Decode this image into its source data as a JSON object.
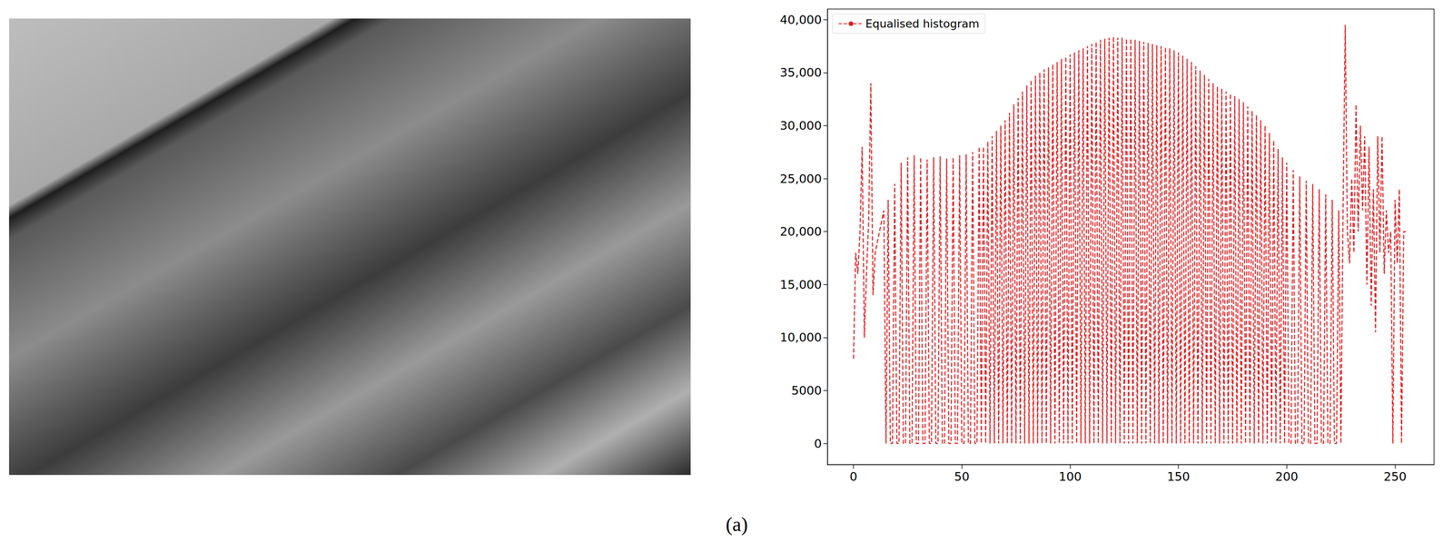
{
  "caption": "(a)",
  "chart_data": {
    "type": "line",
    "legend": "upper left",
    "grid": false,
    "xlim": [
      -12,
      268
    ],
    "xticks": [
      0,
      50,
      100,
      150,
      200,
      250
    ],
    "ylim": [
      -2000,
      41000
    ],
    "yticks": [
      0,
      5000,
      {
        "value": 10000,
        "label": "10,000"
      },
      {
        "value": 15000,
        "label": "15,000"
      },
      {
        "value": 20000,
        "label": "20,000"
      },
      {
        "value": 25000,
        "label": "25,000"
      },
      {
        "value": 30000,
        "label": "30,000"
      },
      {
        "value": 35000,
        "label": "35,000"
      },
      {
        "value": 40000,
        "label": "40,000"
      }
    ],
    "x": [
      0,
      1,
      2,
      3,
      4,
      5,
      6,
      7,
      8,
      9,
      10,
      11,
      12,
      13,
      14,
      15,
      16,
      17,
      18,
      19,
      20,
      21,
      22,
      23,
      24,
      25,
      26,
      27,
      28,
      29,
      30,
      31,
      32,
      33,
      34,
      35,
      36,
      37,
      38,
      39,
      40,
      41,
      42,
      43,
      44,
      45,
      46,
      47,
      48,
      49,
      50,
      51,
      52,
      53,
      54,
      55,
      56,
      57,
      58,
      59,
      60,
      61,
      62,
      63,
      64,
      65,
      66,
      67,
      68,
      69,
      70,
      71,
      72,
      73,
      74,
      75,
      76,
      77,
      78,
      79,
      80,
      81,
      82,
      83,
      84,
      85,
      86,
      87,
      88,
      89,
      90,
      91,
      92,
      93,
      94,
      95,
      96,
      97,
      98,
      99,
      100,
      101,
      102,
      103,
      104,
      105,
      106,
      107,
      108,
      109,
      110,
      111,
      112,
      113,
      114,
      115,
      116,
      117,
      118,
      119,
      120,
      121,
      122,
      123,
      124,
      125,
      126,
      127,
      128,
      129,
      130,
      131,
      132,
      133,
      134,
      135,
      136,
      137,
      138,
      139,
      140,
      141,
      142,
      143,
      144,
      145,
      146,
      147,
      148,
      149,
      150,
      151,
      152,
      153,
      154,
      155,
      156,
      157,
      158,
      159,
      160,
      161,
      162,
      163,
      164,
      165,
      166,
      167,
      168,
      169,
      170,
      171,
      172,
      173,
      174,
      175,
      176,
      177,
      178,
      179,
      180,
      181,
      182,
      183,
      184,
      185,
      186,
      187,
      188,
      189,
      190,
      191,
      192,
      193,
      194,
      195,
      196,
      197,
      198,
      199,
      200,
      201,
      202,
      203,
      204,
      205,
      206,
      207,
      208,
      209,
      210,
      211,
      212,
      213,
      214,
      215,
      216,
      217,
      218,
      219,
      220,
      221,
      222,
      223,
      224,
      225,
      226,
      227,
      228,
      229,
      230,
      231,
      232,
      233,
      234,
      235,
      236,
      237,
      238,
      239,
      240,
      241,
      242,
      243,
      244,
      245,
      246,
      247,
      248,
      249,
      250,
      251,
      252,
      253,
      254,
      255
    ],
    "series": [
      {
        "name": "Equalised histogram",
        "color": "#e31a1c",
        "line_style": "dashed",
        "values": [
          8000,
          18000,
          16000,
          20000,
          28000,
          10000,
          16000,
          21000,
          34000,
          14000,
          18000,
          19000,
          20000,
          21000,
          22000,
          0,
          23000,
          0,
          0,
          24500,
          0,
          0,
          26500,
          0,
          0,
          27000,
          0,
          0,
          27200,
          0,
          0,
          27000,
          0,
          0,
          26800,
          0,
          0,
          27000,
          0,
          0,
          27100,
          0,
          0,
          26900,
          0,
          0,
          27000,
          0,
          0,
          27200,
          0,
          0,
          27300,
          0,
          0,
          27500,
          0,
          0,
          28000,
          0,
          28000,
          0,
          28500,
          0,
          29000,
          0,
          29500,
          0,
          30000,
          0,
          30500,
          0,
          31200,
          0,
          32000,
          0,
          32600,
          0,
          33200,
          0,
          33800,
          0,
          34300,
          0,
          34700,
          0,
          35000,
          0,
          35300,
          0,
          35500,
          0,
          35800,
          0,
          36000,
          0,
          36300,
          0,
          36500,
          0,
          36700,
          0,
          36900,
          0,
          37100,
          0,
          37300,
          0,
          37500,
          0,
          37700,
          0,
          37900,
          0,
          38100,
          0,
          38200,
          0,
          38300,
          0,
          38400,
          0,
          38300,
          0,
          38300,
          0,
          38200,
          0,
          38200,
          0,
          38100,
          0,
          38000,
          0,
          37900,
          0,
          37800,
          0,
          37700,
          0,
          37600,
          0,
          37500,
          0,
          37400,
          0,
          37300,
          0,
          37100,
          0,
          36900,
          0,
          36600,
          0,
          36300,
          0,
          36000,
          0,
          35600,
          0,
          35200,
          0,
          34800,
          0,
          34400,
          0,
          34000,
          0,
          33700,
          0,
          33500,
          0,
          33200,
          0,
          33000,
          0,
          32800,
          0,
          32500,
          0,
          32200,
          0,
          31800,
          0,
          31400,
          0,
          31000,
          0,
          30500,
          0,
          30000,
          0,
          29300,
          0,
          28600,
          0,
          27800,
          0,
          27000,
          0,
          26500,
          0,
          0,
          25800,
          0,
          0,
          25200,
          0,
          0,
          24800,
          0,
          0,
          24500,
          0,
          0,
          24000,
          0,
          0,
          23500,
          0,
          0,
          23000,
          0,
          0,
          22000,
          0,
          22000,
          39500,
          20000,
          17000,
          25000,
          18000,
          32000,
          20000,
          30000,
          22000,
          29000,
          15000,
          28000,
          13000,
          24000,
          10500,
          29000,
          18000,
          29000,
          16000,
          22000,
          18000,
          20000,
          0,
          23000,
          17000,
          24000,
          0,
          20000,
          20000
        ]
      }
    ]
  }
}
